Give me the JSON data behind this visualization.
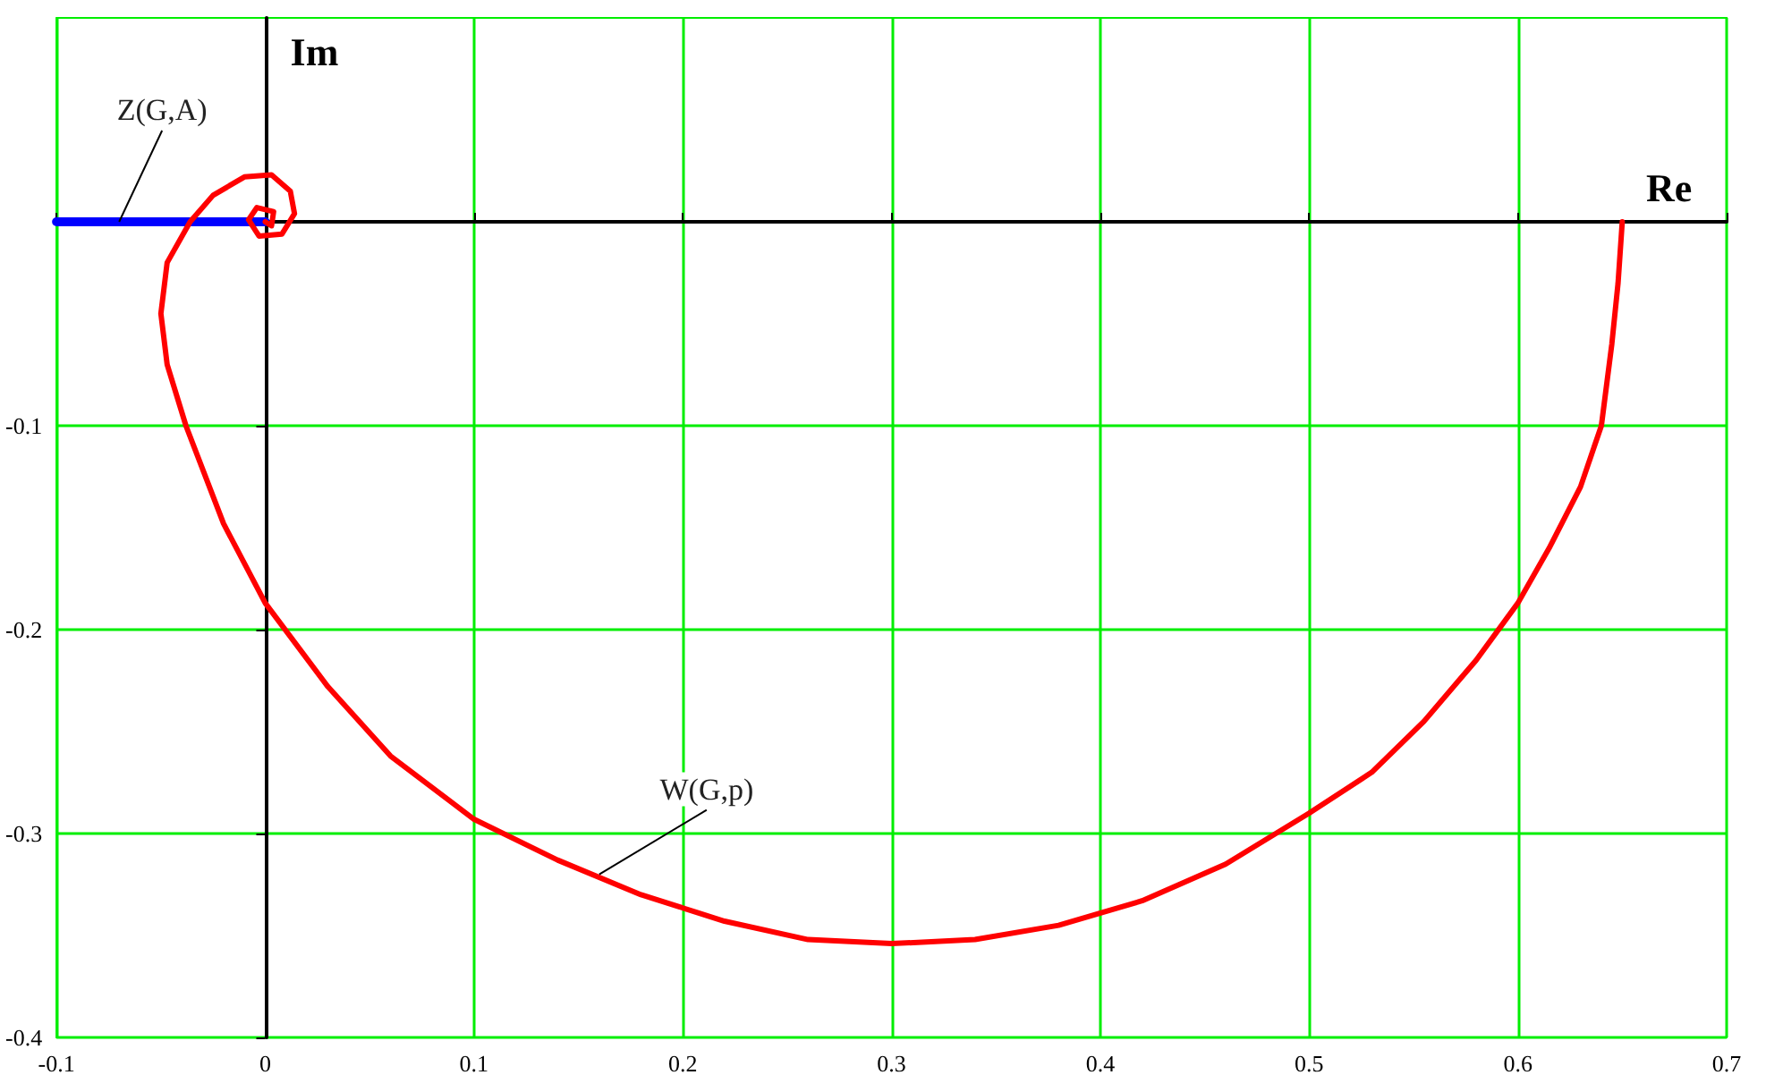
{
  "chart_data": {
    "type": "line",
    "xlabel": "Re",
    "ylabel": "Im",
    "xlim": [
      -0.1,
      0.7
    ],
    "xticks": [
      -0.1,
      0,
      0.1,
      0.2,
      0.3,
      0.4,
      0.5,
      0.6,
      0.7
    ],
    "ylim": [
      -0.4,
      0.1
    ],
    "yticks": [
      -0.4,
      -0.3,
      -0.2,
      -0.1,
      {
        "value": 0,
        "label": null
      }
    ],
    "grid": true,
    "marker": "none",
    "line_style": "solid",
    "series": [
      {
        "color": "#ff0000",
        "x": [
          0.65,
          0.648,
          0.645,
          0.64,
          0.63,
          0.615,
          0.6,
          0.58,
          0.555,
          0.53,
          0.5,
          0.46,
          0.42,
          0.38,
          0.34,
          0.3,
          0.26,
          0.22,
          0.18,
          0.14,
          0.1,
          0.06,
          0.03,
          0,
          -0.02,
          -0.038,
          -0.047,
          -0.05,
          -0.047,
          -0.036,
          -0.025,
          -0.01,
          0.003,
          0.012,
          0.014,
          0.008,
          -0.003,
          -0.008,
          -0.004,
          0.004,
          0.003,
          0
        ],
        "values": [
          0,
          -0.03,
          -0.06,
          -0.1,
          -0.13,
          -0.16,
          -0.187,
          -0.215,
          -0.245,
          -0.27,
          -0.29,
          -0.315,
          -0.333,
          -0.345,
          -0.352,
          -0.354,
          -0.352,
          -0.343,
          -0.33,
          -0.313,
          -0.293,
          -0.262,
          -0.228,
          -0.187,
          -0.148,
          -0.1,
          -0.07,
          -0.045,
          -0.02,
          0,
          0.013,
          0.022,
          0.023,
          0.015,
          0.004,
          -0.006,
          -0.007,
          0.001,
          0.007,
          0.005,
          -0.002,
          0
        ]
      },
      {
        "color": "#0000ff",
        "x": [
          -0.1,
          0
        ],
        "values": [
          0,
          0
        ]
      }
    ],
    "annotations": [
      {
        "text": "Z(G,A)",
        "x": -0.07,
        "y": 0
      },
      {
        "text": "W(G,p)",
        "x": 0.16,
        "y": -0.32
      }
    ]
  }
}
